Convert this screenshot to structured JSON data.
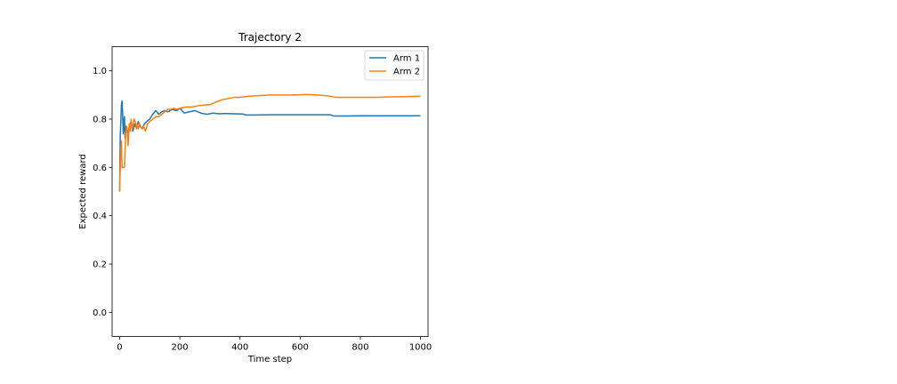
{
  "chart_data": {
    "type": "line",
    "title": "Trajectory 2",
    "xlabel": "Time step",
    "ylabel": "Expected reward",
    "xlim": [
      -25,
      1025
    ],
    "ylim": [
      -0.1,
      1.1
    ],
    "xticks": [
      0,
      200,
      400,
      600,
      800,
      1000
    ],
    "yticks": [
      0.0,
      0.2,
      0.4,
      0.6,
      0.8,
      1.0
    ],
    "xtick_labels": [
      "0",
      "200",
      "400",
      "600",
      "800",
      "1000"
    ],
    "ytick_labels": [
      "0.0",
      "0.2",
      "0.4",
      "0.6",
      "0.8",
      "1.0"
    ],
    "grid": false,
    "legend_position": "top-right",
    "series": [
      {
        "name": "Arm 1",
        "color": "#1f77b4",
        "x": [
          0,
          2,
          4,
          6,
          8,
          10,
          12,
          14,
          16,
          18,
          20,
          24,
          28,
          32,
          38,
          44,
          50,
          56,
          62,
          68,
          75,
          82,
          90,
          100,
          110,
          120,
          130,
          140,
          150,
          160,
          175,
          190,
          200,
          215,
          230,
          250,
          270,
          290,
          310,
          330,
          350,
          380,
          410,
          420,
          450,
          500,
          550,
          600,
          650,
          700,
          710,
          750,
          800,
          850,
          900,
          950,
          1000
        ],
        "values": [
          0.5,
          0.73,
          0.79,
          0.86,
          0.875,
          0.82,
          0.74,
          0.79,
          0.81,
          0.72,
          0.77,
          0.76,
          0.74,
          0.77,
          0.79,
          0.75,
          0.78,
          0.76,
          0.79,
          0.77,
          0.76,
          0.78,
          0.79,
          0.8,
          0.82,
          0.835,
          0.82,
          0.83,
          0.835,
          0.83,
          0.84,
          0.835,
          0.845,
          0.825,
          0.83,
          0.835,
          0.825,
          0.82,
          0.825,
          0.822,
          0.823,
          0.822,
          0.821,
          0.817,
          0.817,
          0.818,
          0.818,
          0.818,
          0.818,
          0.818,
          0.813,
          0.813,
          0.814,
          0.814,
          0.814,
          0.814,
          0.814
        ]
      },
      {
        "name": "Arm 2",
        "color": "#ff7f0e",
        "x": [
          0,
          2,
          4,
          6,
          8,
          12,
          16,
          20,
          24,
          28,
          32,
          36,
          38,
          42,
          48,
          52,
          56,
          58,
          62,
          66,
          70,
          76,
          80,
          86,
          92,
          100,
          110,
          120,
          130,
          140,
          150,
          160,
          170,
          180,
          190,
          200,
          220,
          240,
          260,
          280,
          300,
          320,
          340,
          360,
          380,
          400,
          430,
          460,
          500,
          540,
          580,
          620,
          660,
          700,
          720,
          760,
          800,
          850,
          900,
          950,
          1000
        ],
        "values": [
          0.5,
          0.6,
          0.67,
          0.71,
          0.6,
          0.6,
          0.6,
          0.74,
          0.77,
          0.69,
          0.78,
          0.75,
          0.8,
          0.76,
          0.8,
          0.79,
          0.76,
          0.78,
          0.76,
          0.78,
          0.77,
          0.76,
          0.77,
          0.75,
          0.78,
          0.79,
          0.8,
          0.81,
          0.81,
          0.82,
          0.83,
          0.84,
          0.84,
          0.845,
          0.84,
          0.845,
          0.85,
          0.85,
          0.855,
          0.858,
          0.86,
          0.87,
          0.88,
          0.885,
          0.89,
          0.89,
          0.895,
          0.897,
          0.9,
          0.9,
          0.9,
          0.902,
          0.9,
          0.895,
          0.89,
          0.89,
          0.89,
          0.89,
          0.892,
          0.893,
          0.895
        ]
      }
    ]
  }
}
